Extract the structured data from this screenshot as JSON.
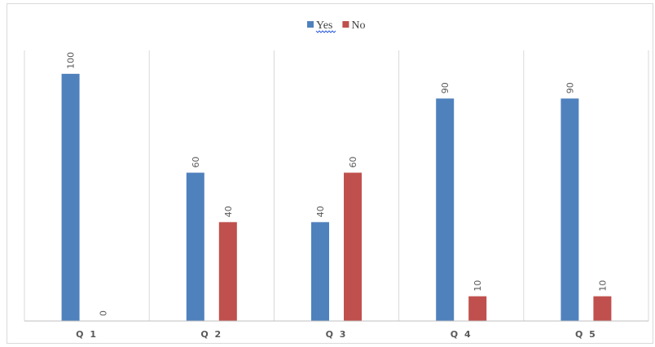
{
  "chart_data": {
    "type": "bar",
    "categories": [
      "Q 1",
      "Q 2",
      "Q 3",
      "Q 4",
      "Q 5"
    ],
    "series": [
      {
        "name": "Yes",
        "values": [
          100,
          60,
          40,
          90,
          90
        ],
        "color": "#4f81bd"
      },
      {
        "name": "No",
        "values": [
          0,
          40,
          60,
          10,
          10
        ],
        "color": "#c0504d"
      }
    ],
    "ylim": [
      0,
      120
    ],
    "grid": "vertical category separators",
    "legend_position": "top-center",
    "data_labels": true
  }
}
